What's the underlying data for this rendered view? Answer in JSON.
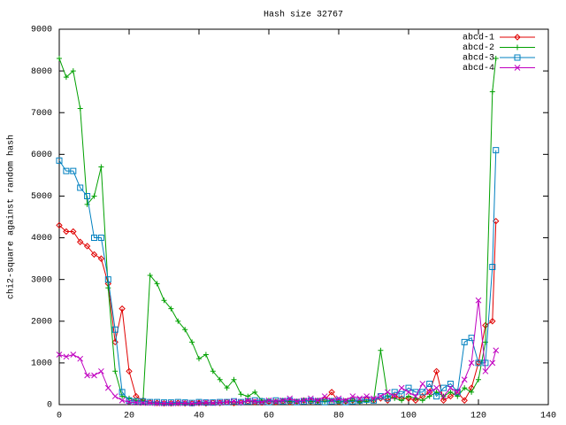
{
  "chart_data": {
    "type": "line",
    "title": "Hash size 32767",
    "y_label": "chi2-square against random hash",
    "x": [
      0,
      2,
      4,
      6,
      8,
      10,
      12,
      14,
      16,
      18,
      20,
      22,
      24,
      26,
      28,
      30,
      32,
      34,
      36,
      38,
      40,
      42,
      44,
      46,
      48,
      50,
      52,
      54,
      56,
      58,
      60,
      62,
      64,
      66,
      68,
      70,
      72,
      74,
      76,
      78,
      80,
      82,
      84,
      86,
      88,
      90,
      92,
      94,
      96,
      98,
      100,
      102,
      104,
      106,
      108,
      110,
      112,
      114,
      116,
      118,
      120,
      122,
      124,
      125
    ],
    "series": [
      {
        "name": "abcd-1",
        "color": "#e00000",
        "marker": "diamond",
        "values": [
          4300,
          4150,
          4150,
          3900,
          3800,
          3600,
          3500,
          2900,
          1500,
          2300,
          800,
          200,
          100,
          50,
          40,
          30,
          30,
          40,
          30,
          30,
          40,
          30,
          50,
          40,
          60,
          40,
          50,
          80,
          60,
          50,
          70,
          60,
          80,
          60,
          70,
          100,
          80,
          90,
          120,
          300,
          60,
          80,
          100,
          80,
          120,
          100,
          150,
          100,
          200,
          150,
          150,
          100,
          200,
          300,
          800,
          100,
          200,
          300,
          100,
          400,
          1000,
          1900,
          2000,
          4400
        ]
      },
      {
        "name": "abcd-2",
        "color": "#00a000",
        "marker": "plus",
        "values": [
          8300,
          7850,
          8000,
          7100,
          4800,
          5000,
          5700,
          2800,
          800,
          200,
          150,
          100,
          100,
          3100,
          2900,
          2500,
          2300,
          2000,
          1800,
          1500,
          1100,
          1200,
          800,
          600,
          400,
          600,
          250,
          200,
          300,
          100,
          100,
          80,
          100,
          80,
          60,
          100,
          80,
          60,
          80,
          100,
          60,
          80,
          100,
          60,
          80,
          100,
          1300,
          200,
          150,
          100,
          200,
          150,
          100,
          200,
          300,
          200,
          300,
          200,
          400,
          300,
          600,
          1500,
          7500,
          8300
        ]
      },
      {
        "name": "abcd-3",
        "color": "#0080c0",
        "marker": "square",
        "values": [
          5850,
          5600,
          5600,
          5200,
          5000,
          4000,
          4000,
          3000,
          1800,
          300,
          100,
          80,
          80,
          60,
          60,
          50,
          50,
          60,
          50,
          40,
          60,
          50,
          50,
          60,
          60,
          80,
          60,
          80,
          100,
          80,
          60,
          100,
          80,
          100,
          60,
          80,
          100,
          80,
          60,
          80,
          100,
          60,
          80,
          100,
          120,
          100,
          200,
          150,
          300,
          250,
          400,
          300,
          300,
          500,
          200,
          400,
          500,
          300,
          1500,
          1600,
          1000,
          1000,
          3300,
          6100
        ]
      },
      {
        "name": "abcd-4",
        "color": "#c000c0",
        "marker": "cross",
        "values": [
          1200,
          1150,
          1200,
          1100,
          700,
          700,
          800,
          400,
          200,
          100,
          60,
          50,
          40,
          40,
          30,
          30,
          30,
          30,
          40,
          30,
          40,
          50,
          40,
          50,
          60,
          80,
          50,
          100,
          80,
          60,
          100,
          80,
          100,
          150,
          80,
          100,
          150,
          100,
          200,
          100,
          150,
          100,
          200,
          150,
          200,
          150,
          200,
          300,
          200,
          400,
          300,
          200,
          500,
          300,
          400,
          200,
          400,
          300,
          600,
          1000,
          2500,
          800,
          1000,
          1300
        ]
      }
    ],
    "xlim": [
      0,
      140
    ],
    "xticks": [
      0,
      20,
      40,
      60,
      80,
      100,
      120,
      140
    ],
    "ylim": [
      0,
      9000
    ],
    "yticks": [
      0,
      1000,
      2000,
      3000,
      4000,
      5000,
      6000,
      7000,
      8000,
      9000
    ],
    "legend": "top-right",
    "grid": false
  }
}
